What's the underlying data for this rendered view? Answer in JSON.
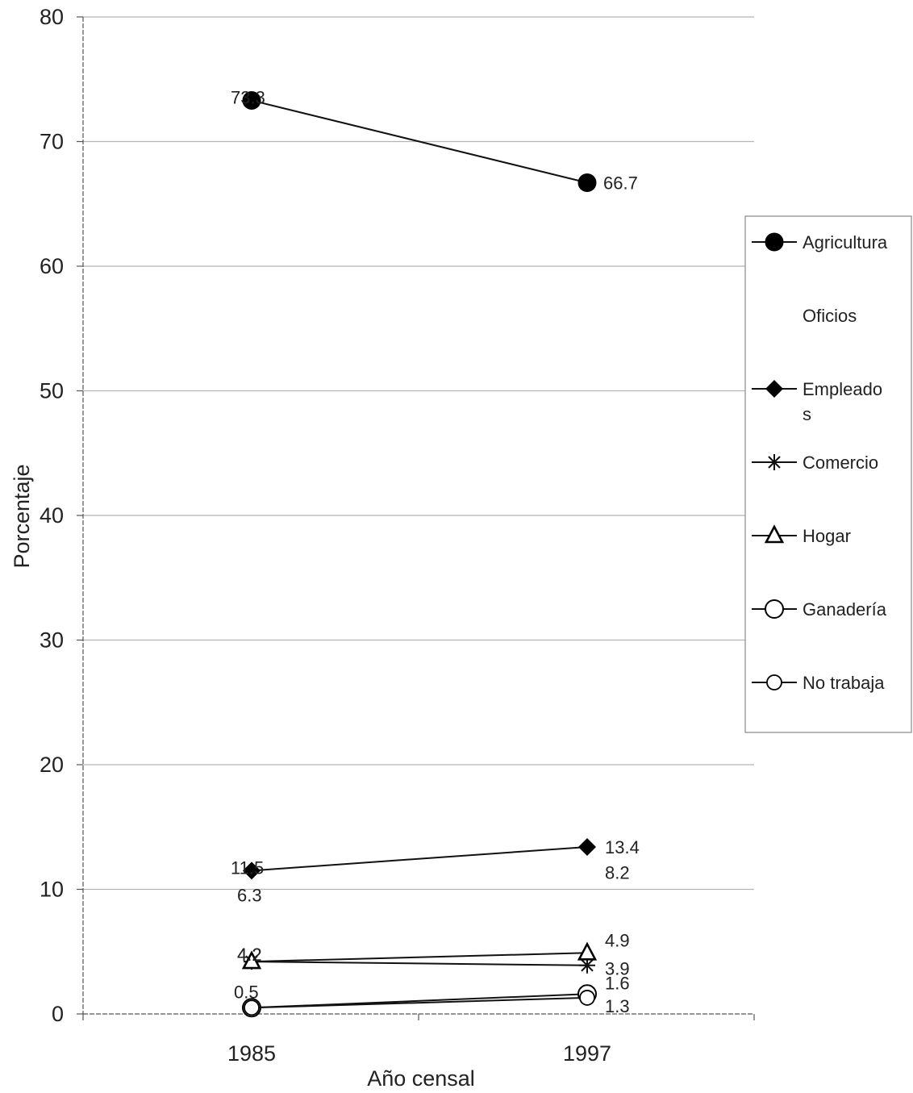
{
  "chart_data": {
    "type": "line",
    "xlabel": "Año censal",
    "ylabel": "Porcentaje",
    "categories": [
      "1985",
      "1997"
    ],
    "ylim": [
      0,
      80
    ],
    "yticks": [
      "0",
      "10",
      "20",
      "30",
      "40",
      "50",
      "60",
      "70",
      "80"
    ],
    "grid": true,
    "legend_position": "right",
    "series": [
      {
        "name": "Agricultura",
        "marker": "filled-circle",
        "values": [
          73.3,
          66.7
        ],
        "labels": [
          "73.3",
          "66.7"
        ]
      },
      {
        "name": "Oficios",
        "marker": "none",
        "values": [
          6.3,
          8.2
        ],
        "labels": [
          "6.3",
          "8.2"
        ]
      },
      {
        "name": "Empleados",
        "legend_lines": [
          "Empleado",
          "s"
        ],
        "marker": "filled-diamond",
        "values": [
          11.5,
          13.4
        ],
        "labels": [
          "11.5",
          "13.4"
        ]
      },
      {
        "name": "Comercio",
        "marker": "star",
        "values": [
          4.2,
          3.9
        ],
        "labels": [
          "4.2",
          "3.9"
        ]
      },
      {
        "name": "Hogar",
        "marker": "open-triangle",
        "values": [
          4.2,
          4.9
        ],
        "labels": [
          "4.2",
          "4.9"
        ]
      },
      {
        "name": "Ganadería",
        "marker": "open-circle-large",
        "values": [
          0.5,
          1.6
        ],
        "labels": [
          "0.5",
          "1.6"
        ]
      },
      {
        "name": "No trabaja",
        "marker": "open-circle-small",
        "values": [
          0.5,
          1.3
        ],
        "labels": [
          "",
          "1.3"
        ]
      }
    ]
  }
}
